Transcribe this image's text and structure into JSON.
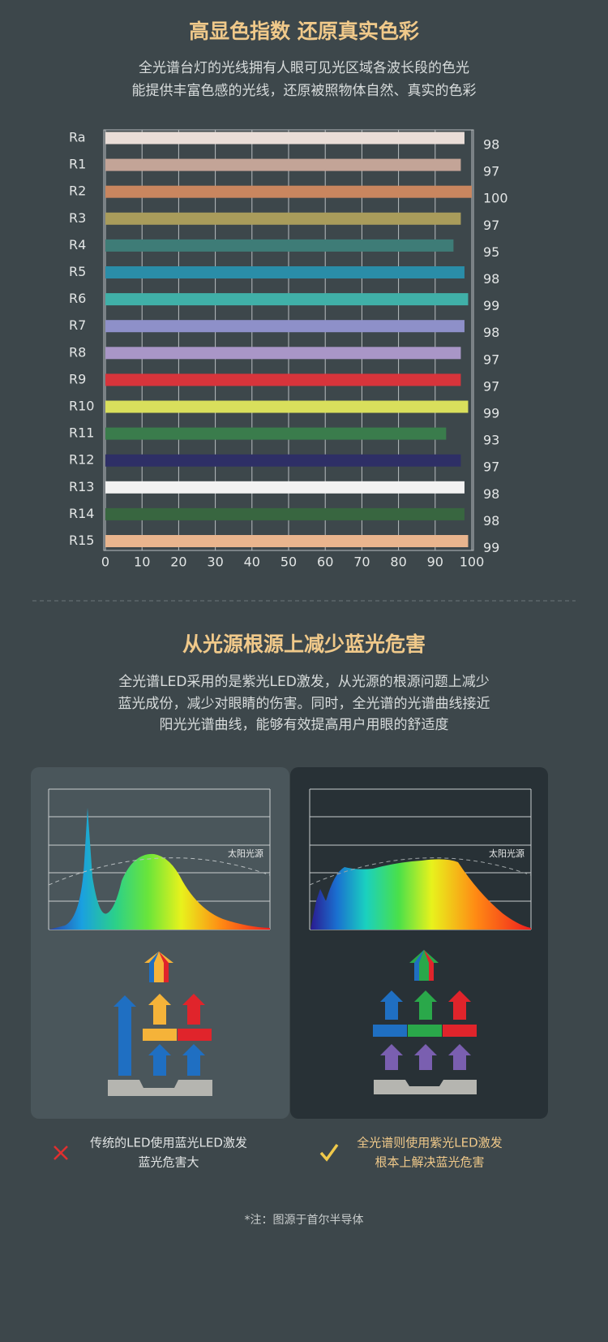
{
  "chart_data": {
    "type": "hbar",
    "title": "高显色指数 还原真实色彩",
    "subtitle": [
      "全光谱台灯的光线拥有人眼可见光区域各波长段的色光",
      "能提供丰富色感的光线，还原被照物体自然、真实的色彩"
    ],
    "categories": [
      "Ra",
      "R1",
      "R2",
      "R3",
      "R4",
      "R5",
      "R6",
      "R7",
      "R8",
      "R9",
      "R10",
      "R11",
      "R12",
      "R13",
      "R14",
      "R15"
    ],
    "values": [
      98,
      97,
      100,
      97,
      95,
      98,
      99,
      98,
      97,
      97,
      99,
      93,
      97,
      98,
      98,
      99
    ],
    "colors": [
      "#e9ddd7",
      "#c3a497",
      "#c9865f",
      "#a99c5b",
      "#3e7c77",
      "#2a8da8",
      "#40b0a8",
      "#8e90c9",
      "#a996c7",
      "#d7343b",
      "#d9df5c",
      "#3a7c4c",
      "#2e2f66",
      "#f2f2f2",
      "#386640",
      "#e9b58e"
    ],
    "xlim": [
      0,
      100
    ],
    "xticks": [
      0,
      10,
      20,
      30,
      40,
      50,
      60,
      70,
      80,
      90,
      100
    ],
    "grid": true
  },
  "section2": {
    "title": "从光源根源上减少蓝光危害",
    "text": [
      "全光谱LED采用的是紫光LED激发，从光源的根源问题上减少",
      "蓝光成份，减少对眼睛的伤害。同时，全光谱的光谱曲线接近",
      "阳光光谱曲线，能够有效提高用户用眼的舒适度"
    ],
    "left_panel": {
      "sun_label": "太阳光源",
      "caption": [
        "传统的LED使用蓝光LED激发",
        "蓝光危害大"
      ]
    },
    "right_panel": {
      "sun_label": "太阳光源",
      "caption": [
        "全光谱则使用紫光LED激发",
        "根本上解决蓝光危害"
      ]
    },
    "note": "*注：图源于首尔半导体"
  }
}
